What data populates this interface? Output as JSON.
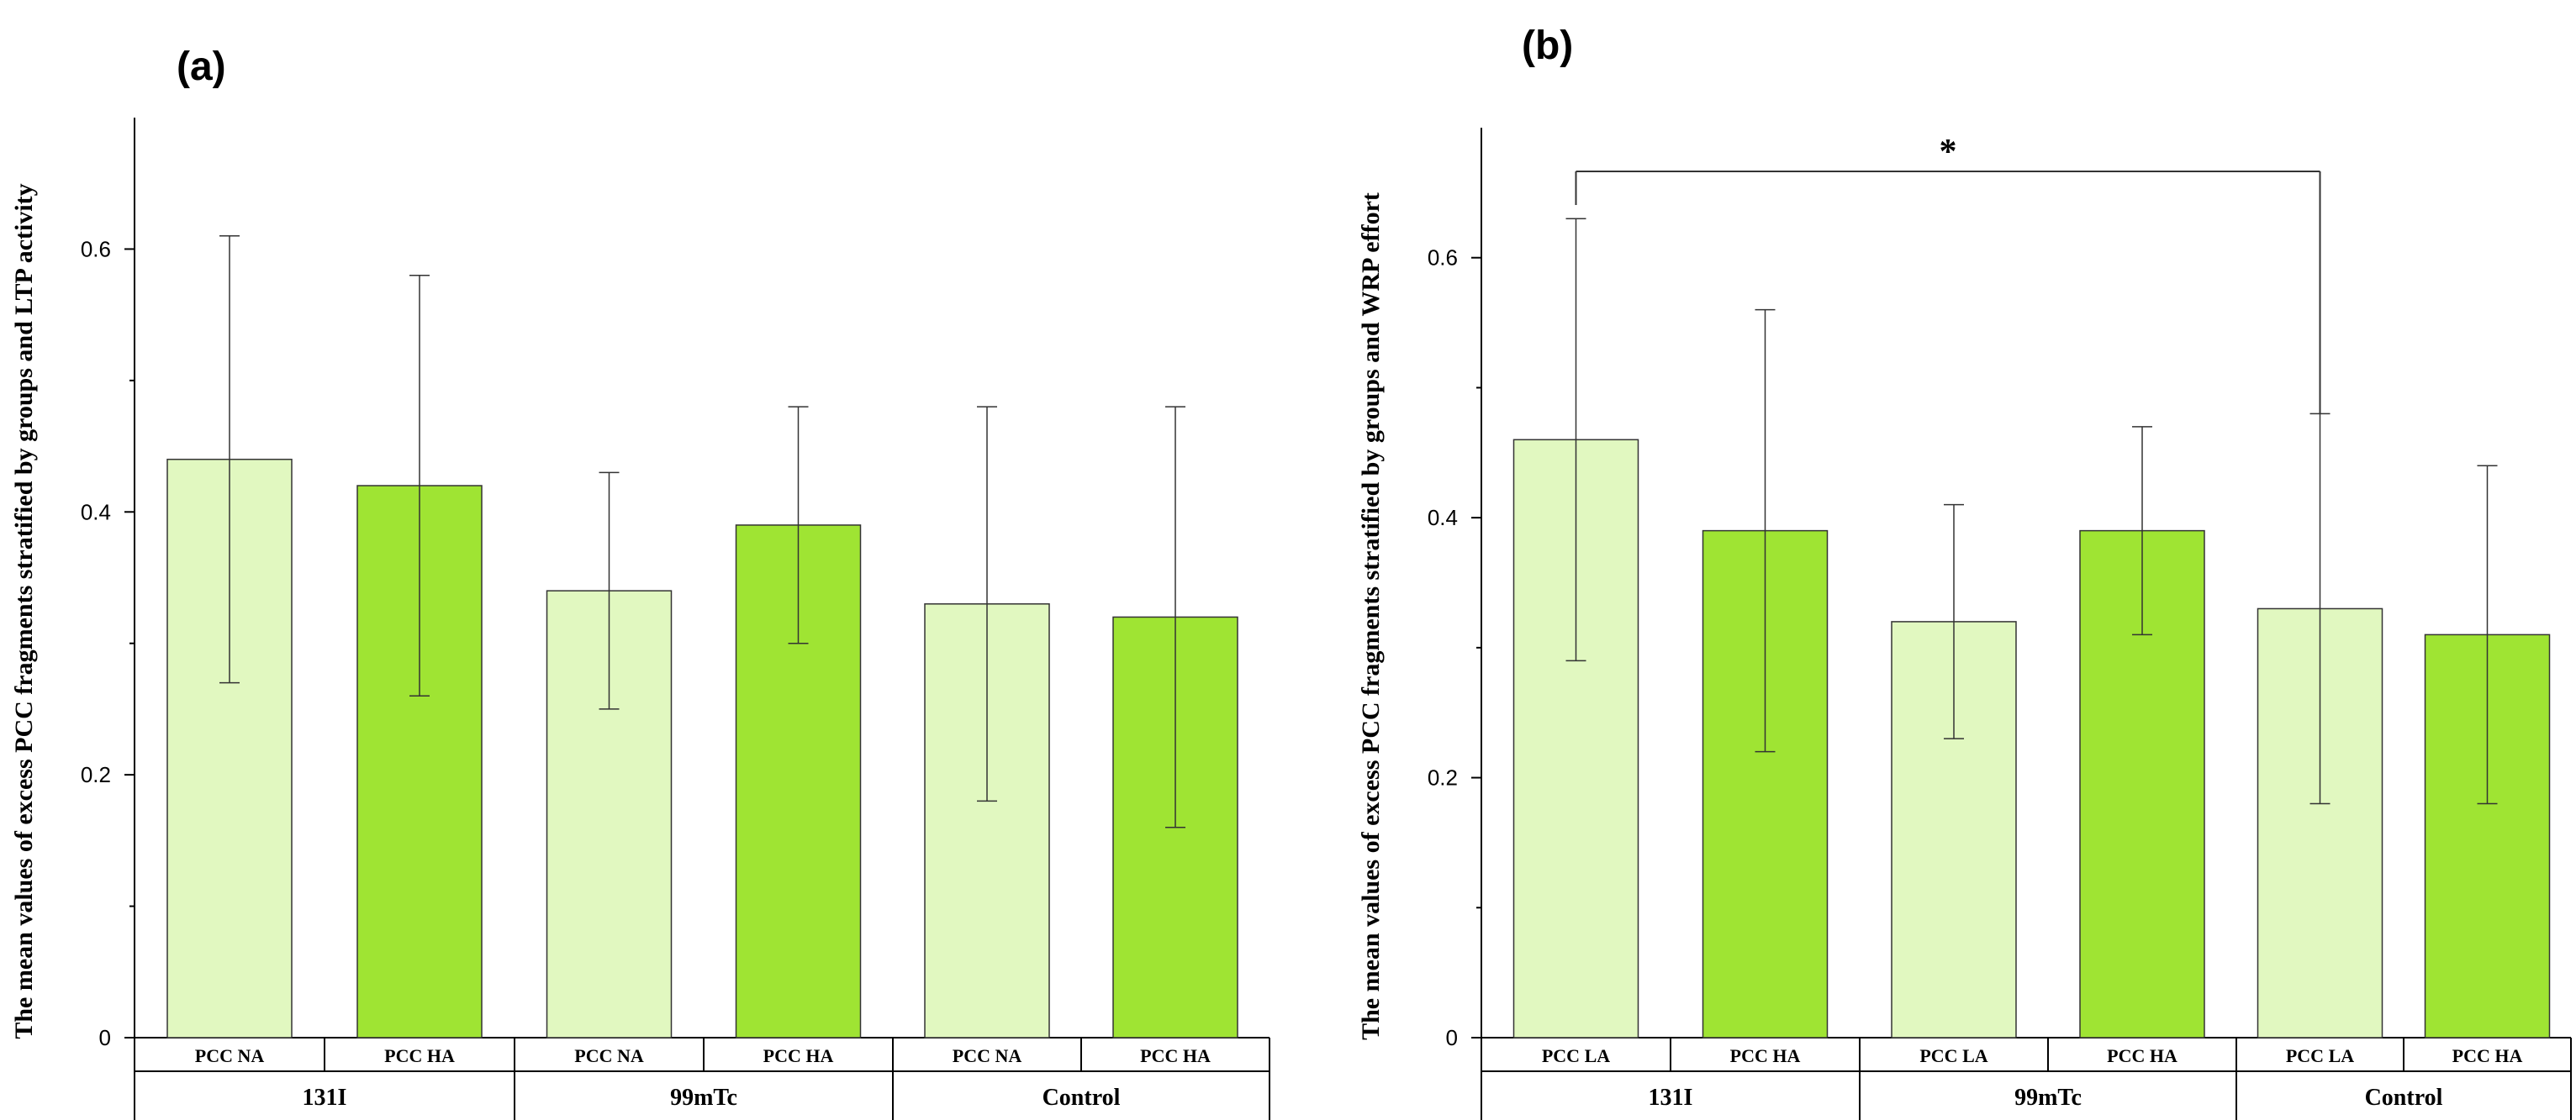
{
  "colors": {
    "light": "#e1f8c0",
    "dark": "#9fe433",
    "axis": "#000000",
    "errbar": "#333333"
  },
  "chart_data": [
    {
      "type": "bar",
      "panel": "(a)",
      "ylabel": "The mean values of excess PCC fragments stratified by groups and LTP activity",
      "ylim": [
        0,
        0.7
      ],
      "yticks": [
        0,
        0.2,
        0.4,
        0.6
      ],
      "ytick_labels": [
        "0",
        "0.2",
        "0.4",
        "0.6"
      ],
      "groups": [
        "131I",
        "99mTc",
        "Control"
      ],
      "subcategories": [
        "PCC NA",
        "PCC HA"
      ],
      "values": [
        [
          0.44,
          0.42
        ],
        [
          0.34,
          0.39
        ],
        [
          0.33,
          0.32
        ]
      ],
      "err_low": [
        [
          0.27,
          0.26
        ],
        [
          0.25,
          0.3
        ],
        [
          0.18,
          0.16
        ]
      ],
      "err_high": [
        [
          0.61,
          0.58
        ],
        [
          0.43,
          0.48
        ],
        [
          0.48,
          0.48
        ]
      ],
      "significance": []
    },
    {
      "type": "bar",
      "panel": "(b)",
      "ylabel": "The mean values of excess PCC fragments stratified by groups and WRP effort",
      "ylim": [
        0,
        0.7
      ],
      "yticks": [
        0,
        0.2,
        0.4,
        0.6
      ],
      "ytick_labels": [
        "0",
        "0.2",
        "0.4",
        "0.6"
      ],
      "groups": [
        "131I",
        "99mTc",
        "Control"
      ],
      "subcategories": [
        "PCC LA",
        "PCC HA"
      ],
      "values": [
        [
          0.46,
          0.39
        ],
        [
          0.32,
          0.39
        ],
        [
          0.33,
          0.31
        ]
      ],
      "err_low": [
        [
          0.29,
          0.22
        ],
        [
          0.23,
          0.31
        ],
        [
          0.18,
          0.18
        ]
      ],
      "err_high": [
        [
          0.63,
          0.56
        ],
        [
          0.41,
          0.47
        ],
        [
          0.48,
          0.44
        ]
      ],
      "significance": [
        {
          "from": [
            0,
            0
          ],
          "to": [
            2,
            0
          ],
          "label": "*"
        }
      ]
    }
  ]
}
